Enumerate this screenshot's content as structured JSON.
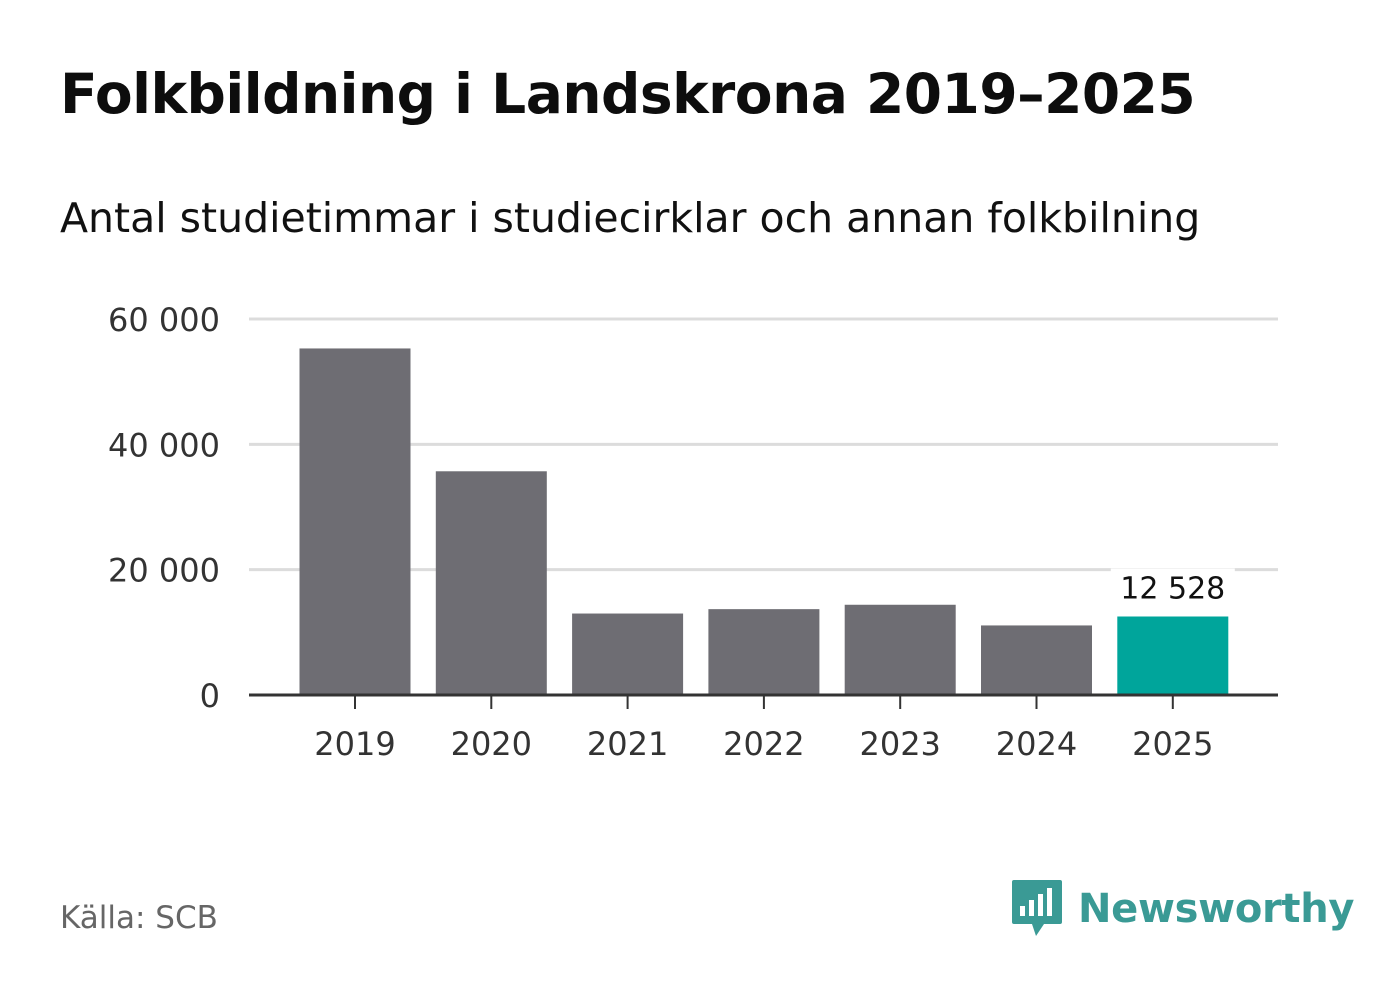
{
  "header": {
    "title": "Folkbildning i Landskrona 2019–2025",
    "subtitle": "Antal studietimmar i studiecirklar och annan folkbilning"
  },
  "footer": {
    "source": "Källa: SCB",
    "brand": "Newsworthy"
  },
  "colors": {
    "bar": "#6e6d73",
    "highlight": "#00a59b",
    "grid": "#dcdcdc",
    "axis": "#333333",
    "brand": "#3a9a95"
  },
  "chart_data": {
    "type": "bar",
    "title": "Folkbildning i Landskrona 2019–2025",
    "subtitle": "Antal studietimmar i studiecirklar och annan folkbilning",
    "xlabel": "",
    "ylabel": "",
    "categories": [
      "2019",
      "2020",
      "2021",
      "2022",
      "2023",
      "2024",
      "2025"
    ],
    "values": [
      55300,
      35700,
      13000,
      13700,
      14400,
      11100,
      12528
    ],
    "highlight_index": 6,
    "data_labels": [
      {
        "index": 6,
        "text": "12 528"
      }
    ],
    "ylim": [
      0,
      60000
    ],
    "yticks": [
      0,
      20000,
      40000,
      60000
    ],
    "ytick_labels": [
      "0",
      "20 000",
      "40 000",
      "60 000"
    ],
    "grid": true,
    "legend": "none"
  }
}
